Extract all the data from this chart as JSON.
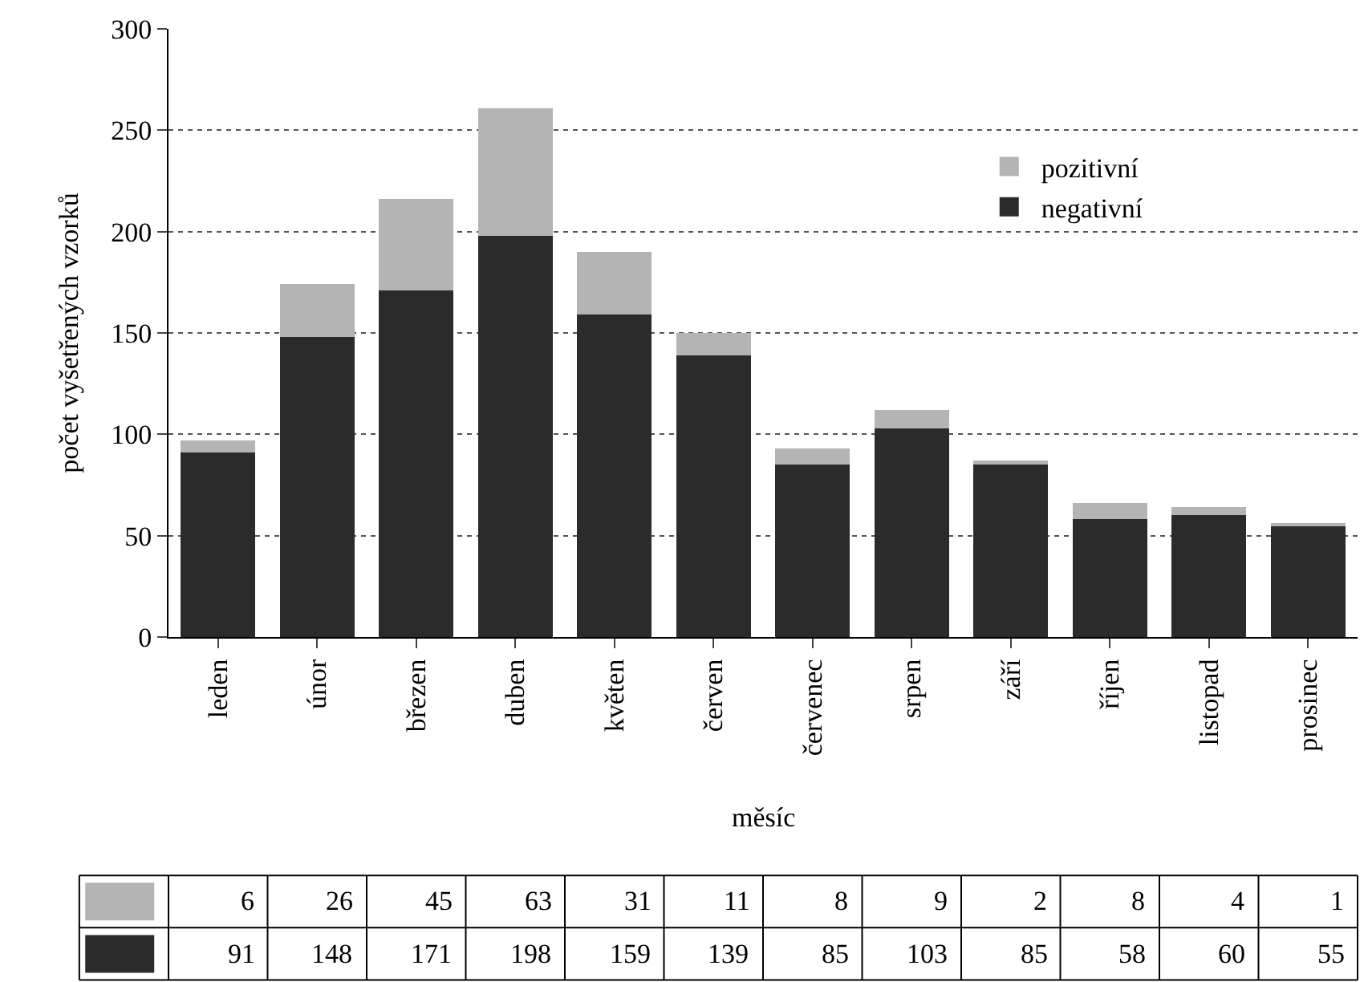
{
  "chart_data": {
    "type": "bar",
    "stacked": true,
    "xlabel": "měsíc",
    "ylabel": "počet vyšetřených vzorků",
    "categories": [
      "leden",
      "únor",
      "březen",
      "duben",
      "květen",
      "červen",
      "červenec",
      "srpen",
      "září",
      "říjen",
      "listopad",
      "prosinec"
    ],
    "series": [
      {
        "name": "negativní",
        "color": "#2b2b2b",
        "values": [
          91,
          148,
          171,
          198,
          159,
          139,
          85,
          103,
          85,
          58,
          60,
          55
        ]
      },
      {
        "name": "pozitivní",
        "color": "#b4b4b4",
        "values": [
          6,
          26,
          45,
          63,
          31,
          11,
          8,
          9,
          2,
          8,
          4,
          1
        ]
      }
    ],
    "ylim": [
      0,
      300
    ],
    "yticks": [
      0,
      50,
      100,
      150,
      200,
      250,
      300
    ],
    "grid": "y",
    "legend": "top right",
    "data_labels": true
  }
}
